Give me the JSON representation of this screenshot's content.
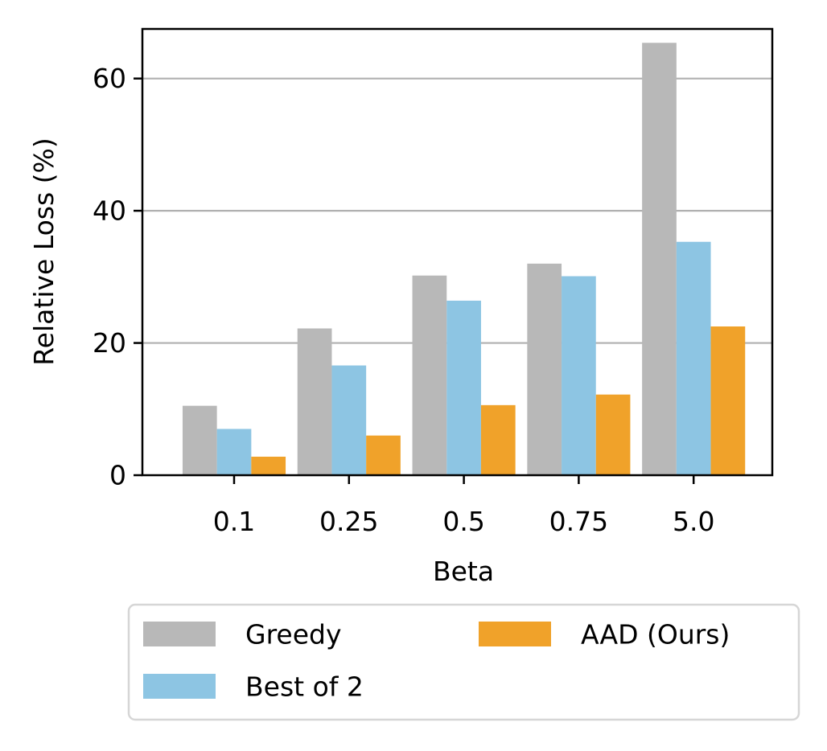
{
  "chart_data": {
    "type": "bar",
    "title": "",
    "xlabel": "Beta",
    "ylabel": "Relative Loss (%)",
    "categories": [
      "0.1",
      "0.25",
      "0.5",
      "0.75",
      "5.0"
    ],
    "series": [
      {
        "name": "Greedy",
        "color": "#b8b8b8",
        "values": [
          10.5,
          22.2,
          30.2,
          32.0,
          65.4
        ]
      },
      {
        "name": "Best of 2",
        "color": "#8dc5e3",
        "values": [
          7.0,
          16.6,
          26.4,
          30.1,
          35.3
        ]
      },
      {
        "name": "AAD (Ours)",
        "color": "#f0a22a",
        "values": [
          2.8,
          6.0,
          10.6,
          12.2,
          22.5
        ]
      }
    ],
    "ylim": [
      0,
      67.5
    ],
    "yticks": [
      0,
      20,
      40,
      60
    ],
    "ytick_labels": [
      "0",
      "20",
      "40",
      "60"
    ],
    "grid": "y",
    "legend_position": "bottom-center",
    "legend_columns": 2
  }
}
